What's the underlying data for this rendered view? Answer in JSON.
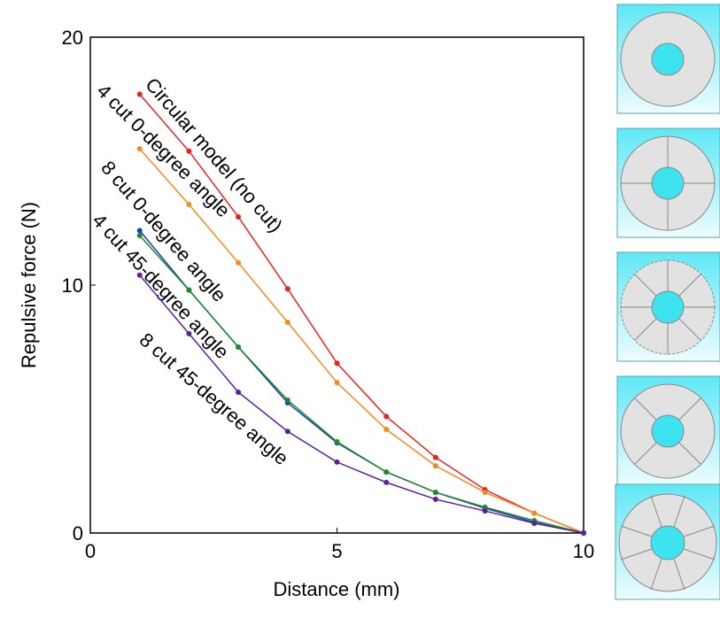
{
  "chart_data": {
    "type": "line",
    "x_label": "Distance (mm)",
    "y_label": "Repulsive force (N)",
    "x": [
      1,
      2,
      3,
      4,
      5,
      6,
      7,
      8,
      9,
      10
    ],
    "xlim": [
      0,
      10
    ],
    "xticks": [
      0,
      5,
      10
    ],
    "ylim": [
      0,
      20
    ],
    "yticks": [
      0,
      10,
      20
    ],
    "series": [
      {
        "name": "Circular model (no cut)",
        "color": "#e8231f",
        "values": [
          17.7,
          15.4,
          12.75,
          9.85,
          6.85,
          4.7,
          3.05,
          1.75,
          0.8,
          0
        ]
      },
      {
        "name": "4 cut 0-degree angle",
        "color": "#f28a1f",
        "values": [
          15.5,
          13.25,
          10.9,
          8.5,
          6.07,
          4.18,
          2.71,
          1.64,
          0.8,
          0
        ]
      },
      {
        "name": "8 cut 0-degree angle",
        "color": "#1a3fbf",
        "values": [
          12.2,
          9.8,
          7.5,
          5.25,
          3.64,
          2.46,
          1.64,
          1.0,
          0.43,
          0
        ]
      },
      {
        "name": "4 cut 45-degree angle",
        "color": "#1f8a2a",
        "values": [
          12.0,
          9.8,
          7.5,
          5.36,
          3.68,
          2.46,
          1.64,
          1.04,
          0.5,
          0
        ]
      },
      {
        "name": "8 cut 45-degree angle",
        "color": "#5b1f9e",
        "values": [
          10.4,
          8.04,
          5.68,
          4.1,
          2.86,
          2.04,
          1.36,
          0.89,
          0.39,
          0
        ]
      }
    ]
  }
}
